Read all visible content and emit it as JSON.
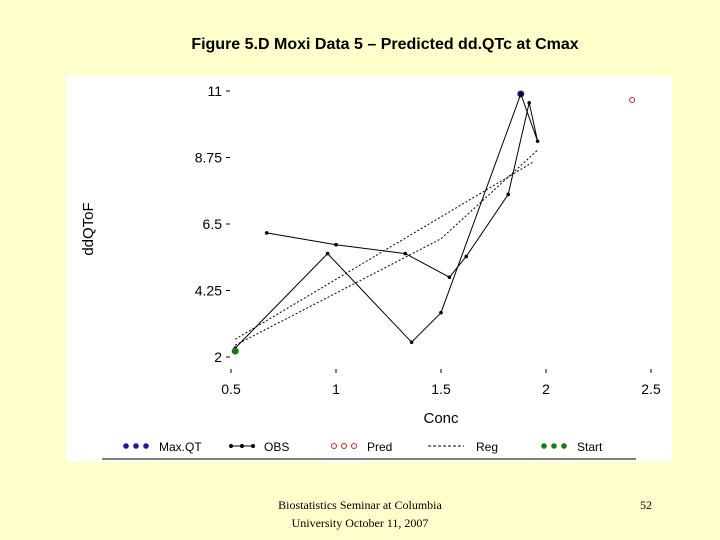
{
  "slide": {
    "title": "Figure 5.D Moxi Data 5 – Predicted dd.QTc at Cmax",
    "footer_line1": "Biostatistics Seminar at Columbia",
    "footer_line2": "University October 11, 2007",
    "page_number": "52"
  },
  "chart_data": {
    "type": "line",
    "xlabel": "Conc",
    "ylabel": "ddQToF",
    "xlim": [
      0.5,
      2.5
    ],
    "ylim": [
      2,
      11
    ],
    "x_ticks": [
      "0.5",
      "1",
      "1.5",
      "2",
      "2.5"
    ],
    "x_tick_values": [
      0.5,
      1,
      1.5,
      2,
      2.5
    ],
    "y_ticks": [
      "2",
      "4.25",
      "6.5",
      "8.75",
      "11"
    ],
    "y_tick_values": [
      2,
      4.25,
      6.5,
      8.75,
      11
    ],
    "grid": false,
    "legend_position": "bottom",
    "series": [
      {
        "name": "Max.QT",
        "style": "dots",
        "color": "#1a1aa0",
        "points": [
          {
            "x": 1.88,
            "y": 10.9
          }
        ]
      },
      {
        "name": "OBS",
        "style": "line-points",
        "color": "#000000",
        "lines": [
          [
            {
              "x": 0.67,
              "y": 6.2
            },
            {
              "x": 1.0,
              "y": 5.8
            },
            {
              "x": 1.33,
              "y": 5.5
            },
            {
              "x": 1.54,
              "y": 4.7
            },
            {
              "x": 1.62,
              "y": 5.4
            },
            {
              "x": 1.82,
              "y": 7.5
            },
            {
              "x": 1.92,
              "y": 10.6
            },
            {
              "x": 1.96,
              "y": 9.3
            },
            {
              "x": 1.88,
              "y": 10.9
            }
          ],
          [
            {
              "x": 0.52,
              "y": 2.3
            },
            {
              "x": 0.96,
              "y": 5.5
            },
            {
              "x": 1.36,
              "y": 2.5
            },
            {
              "x": 1.5,
              "y": 3.5
            },
            {
              "x": 1.88,
              "y": 10.9
            }
          ]
        ]
      },
      {
        "name": "Pred",
        "style": "open-circles",
        "color": "#cc2222",
        "points": [
          {
            "x": 2.41,
            "y": 10.7
          }
        ]
      },
      {
        "name": "Reg",
        "style": "dashed",
        "color": "#000000",
        "lines": [
          [
            {
              "x": 0.52,
              "y": 2.6
            },
            {
              "x": 1.94,
              "y": 8.6
            }
          ],
          [
            {
              "x": 0.52,
              "y": 2.4
            },
            {
              "x": 1.5,
              "y": 6.0
            },
            {
              "x": 1.96,
              "y": 9.0
            }
          ]
        ]
      },
      {
        "name": "Start",
        "style": "dots",
        "color": "#1a7a1a",
        "points": [
          {
            "x": 0.52,
            "y": 2.2
          }
        ]
      }
    ]
  }
}
